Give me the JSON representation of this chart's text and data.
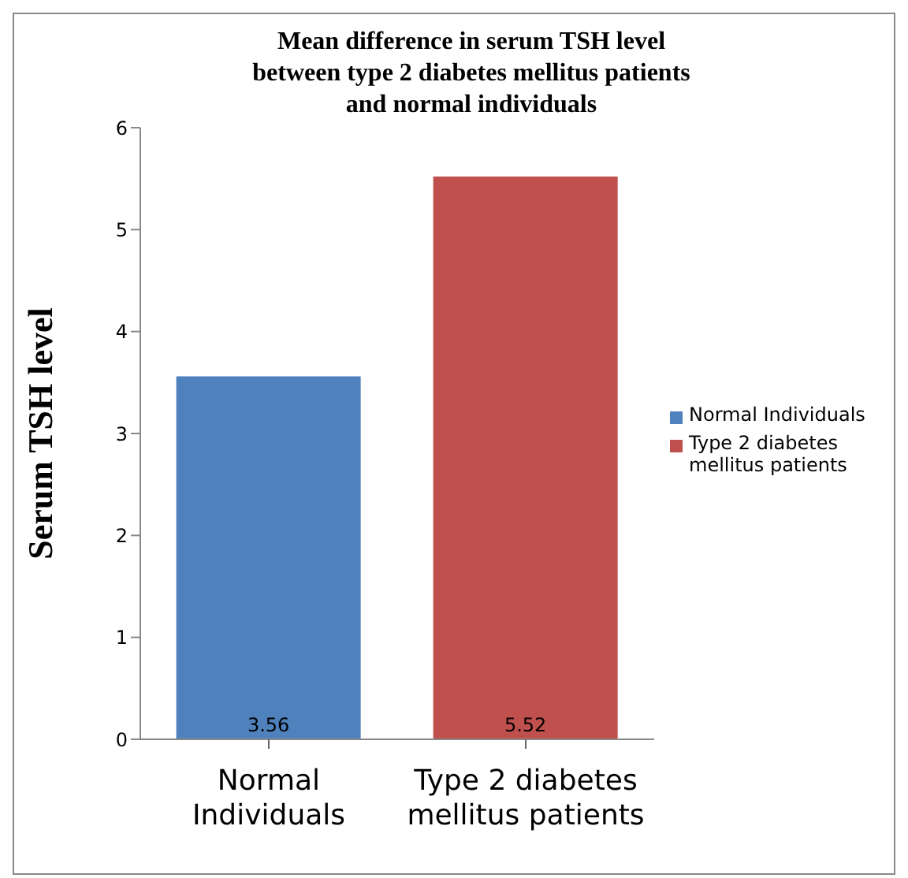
{
  "chart_data": {
    "type": "bar",
    "title": "Mean difference in serum TSH level between type 2 diabetes mellitus patients and normal individuals",
    "ylabel": "Serum TSH level",
    "categories": [
      "Normal Individuals",
      "Type 2 diabetes mellitus patients"
    ],
    "series": [
      {
        "name": "Normal Individuals",
        "color": "#4f81bd",
        "values": [
          3.56,
          null
        ]
      },
      {
        "name": "Type 2 diabetes mellitus patients",
        "color": "#c0504d",
        "values": [
          null,
          5.52
        ]
      }
    ],
    "ylim": [
      0,
      6
    ],
    "yticks": [
      0,
      1,
      2,
      3,
      4,
      5,
      6
    ],
    "grid": false,
    "legend": "right",
    "data_labels": true
  }
}
